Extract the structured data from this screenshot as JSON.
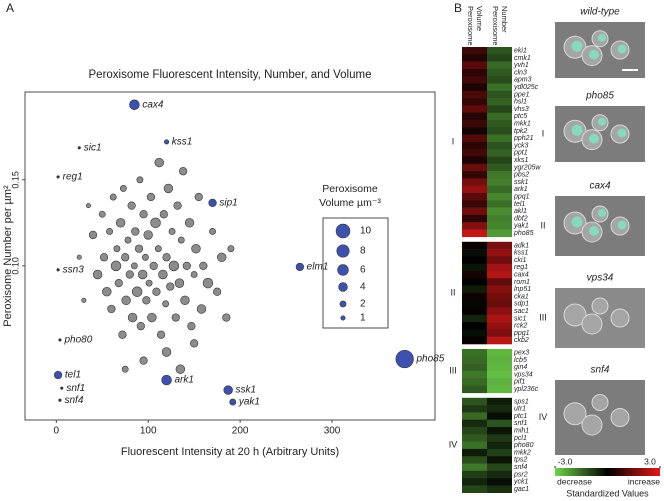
{
  "panels": [
    "A",
    "B"
  ],
  "chart_data": [
    {
      "type": "scatter",
      "title": "Peroxisome Fluorescent Intensity, Number, and Volume",
      "x_label": "Fluorescent Intensity at 20 h (Arbitrary Units)",
      "y_label": "Peroxisome Number per µm²",
      "xlim": [
        -34,
        412
      ],
      "ylim": [
        0.0105,
        0.201
      ],
      "xticks": [
        0,
        100,
        200,
        300
      ],
      "yticks": [
        {
          "value": 0.1,
          "label": "0.10"
        },
        0.15
      ],
      "size_legend": {
        "title": [
          "Peroxisome",
          "Volume µm⁻³"
        ],
        "values": [
          10,
          8,
          6,
          4,
          2,
          1
        ]
      },
      "series": [
        {
          "color": "#8c8c8c",
          "x": [
            40,
            45,
            50,
            52,
            55,
            58,
            60,
            62,
            65,
            66,
            68,
            70,
            72,
            73,
            75,
            76,
            78,
            80,
            82,
            83,
            85,
            86,
            88,
            90,
            91,
            92,
            94,
            95,
            97,
            98,
            100,
            101,
            103,
            104,
            106,
            108,
            109,
            111,
            112,
            114,
            116,
            117,
            119,
            120,
            122,
            124,
            126,
            128,
            130,
            132,
            134,
            136,
            138,
            140,
            142,
            145,
            147,
            150,
            152,
            155,
            158,
            160,
            165,
            170,
            175,
            180,
            185,
            120,
            95,
            135,
            75,
            150,
            190,
            30,
            35,
            25
          ],
          "y": [
            0.118,
            0.095,
            0.13,
            0.105,
            0.085,
            0.12,
            0.075,
            0.14,
            0.1,
            0.11,
            0.09,
            0.125,
            0.06,
            0.145,
            0.105,
            0.08,
            0.115,
            0.095,
            0.135,
            0.07,
            0.1,
            0.12,
            0.085,
            0.11,
            0.15,
            0.065,
            0.095,
            0.13,
            0.105,
            0.08,
            0.118,
            0.09,
            0.14,
            0.07,
            0.1,
            0.125,
            0.085,
            0.11,
            0.16,
            0.06,
            0.095,
            0.13,
            0.078,
            0.105,
            0.145,
            0.088,
            0.12,
            0.1,
            0.07,
            0.135,
            0.09,
            0.115,
            0.155,
            0.08,
            0.1,
            0.125,
            0.065,
            0.095,
            0.11,
            0.14,
            0.075,
            0.1,
            0.09,
            0.12,
            0.085,
            0.105,
            0.07,
            0.05,
            0.045,
            0.04,
            0.04,
            0.055,
            0.11,
            0.08,
            0.135,
            0.105
          ],
          "sizes": [
            3,
            4,
            2,
            3,
            4,
            2,
            3,
            2,
            5,
            2,
            3,
            4,
            3,
            2,
            3,
            4,
            2,
            3,
            3,
            4,
            2,
            3,
            5,
            3,
            2,
            3,
            4,
            3,
            2,
            3,
            4,
            2,
            3,
            4,
            3,
            5,
            3,
            2,
            4,
            3,
            4,
            3,
            2,
            3,
            4,
            3,
            2,
            5,
            3,
            3,
            4,
            2,
            3,
            4,
            3,
            4,
            3,
            2,
            4,
            3,
            4,
            3,
            5,
            2,
            3,
            4,
            3,
            4,
            3,
            4,
            2,
            3,
            2,
            1,
            1,
            1
          ]
        },
        {
          "color": "#3f51b0",
          "x": [
            85,
            120,
            170,
            265,
            379,
            187,
            192,
            120,
            2
          ],
          "y": [
            0.1936,
            0.172,
            0.1366,
            0.0994,
            0.0459,
            0.0279,
            0.0209,
            0.0337,
            0.0366
          ],
          "sizes": [
            5,
            1,
            3,
            3,
            16,
            4,
            2,
            5,
            3
          ],
          "labels": [
            "cax4",
            "kss1",
            "sip1",
            "elm1",
            "pho85",
            "ssk1",
            "yak1",
            "ark1",
            "tel1"
          ]
        },
        {
          "color": "#333333",
          "x": [
            25,
            2,
            2,
            4,
            6,
            4
          ],
          "y": [
            0.1686,
            0.1517,
            0.0977,
            0.057,
            0.029,
            0.022
          ],
          "sizes": [
            0.5,
            0.5,
            0.5,
            0.5,
            0.5,
            0.5
          ],
          "labels": [
            "sic1",
            "reg1",
            "ssn3",
            "pho80",
            "snf1",
            "snf4"
          ]
        }
      ]
    },
    {
      "type": "heatmap",
      "columns": [
        [
          "Peroxisome",
          "Volume"
        ],
        [
          "Peroxisome",
          "Number"
        ]
      ],
      "colorbar": {
        "colors": [
          "#6fd34a",
          "#000000",
          "#e01a1a"
        ],
        "lim": [
          -3,
          3
        ],
        "ticks": [
          {
            "value": -3,
            "label": "-3.0"
          },
          {
            "value": 3,
            "label": "3.0"
          }
        ],
        "left_label": "decrease",
        "right_label": "increase",
        "title": "Standardized Values"
      },
      "groups": [
        {
          "label": "I",
          "genes": [
            "eki1",
            "cmk1",
            "yvh1",
            "cln3",
            "apm3",
            "ydl025c",
            "ppe1",
            "hsl1",
            "vhs3",
            "ptc5",
            "mkk1",
            "tpk2",
            "pph21",
            "yck3",
            "ppt1",
            "xks1",
            "ygr205w",
            "pbs2",
            "ssk1",
            "ark1",
            "ppq1",
            "tel1",
            "akl1",
            "dbf2",
            "yak1",
            "pho85"
          ],
          "values": [
            [
              0.8,
              -1.2
            ],
            [
              0.5,
              -1.0
            ],
            [
              1.2,
              -1.5
            ],
            [
              0.6,
              -1.3
            ],
            [
              0.9,
              -1.1
            ],
            [
              0.4,
              -1.6
            ],
            [
              1.0,
              -1.2
            ],
            [
              0.7,
              -1.4
            ],
            [
              1.3,
              -1.0
            ],
            [
              0.5,
              -1.5
            ],
            [
              0.8,
              -1.3
            ],
            [
              0.3,
              -1.1
            ],
            [
              1.1,
              -1.6
            ],
            [
              0.6,
              -1.2
            ],
            [
              0.9,
              -1.4
            ],
            [
              0.4,
              -1.0
            ],
            [
              1.4,
              -1.3
            ],
            [
              0.7,
              -1.7
            ],
            [
              1.6,
              -1.8
            ],
            [
              2.0,
              -1.5
            ],
            [
              1.2,
              -1.9
            ],
            [
              0.8,
              -1.6
            ],
            [
              1.5,
              -2.0
            ],
            [
              0.6,
              -1.8
            ],
            [
              1.8,
              -1.9
            ],
            [
              2.6,
              -2.2
            ]
          ]
        },
        {
          "label": "II",
          "genes": [
            "adk1",
            "kss1",
            "cki1",
            "reg1",
            "cax4",
            "rom1",
            "lnp51",
            "cka1",
            "sdp1",
            "sac1",
            "sic1",
            "rck2",
            "ppg1",
            "ckb2"
          ],
          "values": [
            [
              0.1,
              1.6
            ],
            [
              -0.2,
              2.0
            ],
            [
              0.0,
              1.5
            ],
            [
              -0.3,
              2.2
            ],
            [
              0.3,
              2.4
            ],
            [
              0.0,
              1.3
            ],
            [
              -0.4,
              1.8
            ],
            [
              0.2,
              1.6
            ],
            [
              -0.1,
              1.4
            ],
            [
              0.1,
              1.9
            ],
            [
              -0.5,
              2.3
            ],
            [
              0.0,
              2.0
            ],
            [
              -0.2,
              1.7
            ],
            [
              0.1,
              2.5
            ]
          ]
        },
        {
          "label": "III",
          "genes": [
            "pex3",
            "lcb5",
            "gin4",
            "vps34",
            "pif1",
            "ypl236c"
          ],
          "values": [
            [
              -1.6,
              -2.6
            ],
            [
              -1.5,
              -2.5
            ],
            [
              -1.4,
              -2.6
            ],
            [
              -1.7,
              -2.7
            ],
            [
              -1.5,
              -2.5
            ],
            [
              -1.3,
              -2.6
            ]
          ]
        },
        {
          "label": "IV",
          "genes": [
            "sps1",
            "utr1",
            "ptc1",
            "snf1",
            "mih1",
            "pcl1",
            "pho80",
            "mkk2",
            "tps2",
            "snf4",
            "psr2",
            "yck1",
            "gac1"
          ],
          "values": [
            [
              -1.2,
              -0.4
            ],
            [
              -0.8,
              -0.6
            ],
            [
              -1.5,
              -0.2
            ],
            [
              -0.6,
              -1.2
            ],
            [
              -1.0,
              -0.3
            ],
            [
              -1.3,
              -0.8
            ],
            [
              -1.6,
              -0.5
            ],
            [
              -0.4,
              -0.9
            ],
            [
              -1.1,
              -0.3
            ],
            [
              -1.7,
              -1.0
            ],
            [
              -0.9,
              -0.6
            ],
            [
              -0.5,
              -0.2
            ],
            [
              -1.0,
              -0.7
            ]
          ]
        }
      ]
    }
  ],
  "images": [
    {
      "title": "wild-type"
    },
    {
      "title": "pho85",
      "group": "I"
    },
    {
      "title": "cax4",
      "group": "II"
    },
    {
      "title": "vps34",
      "group": "III"
    },
    {
      "title": "snf4",
      "group": "IV"
    }
  ]
}
